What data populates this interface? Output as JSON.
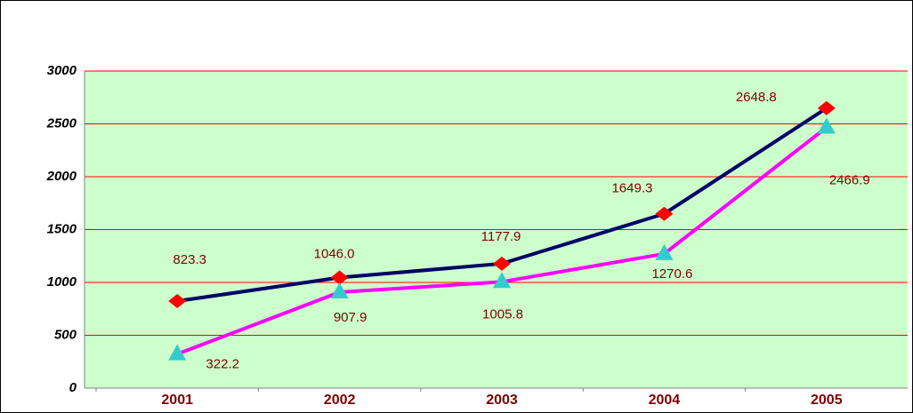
{
  "chart_data": {
    "type": "line",
    "categories": [
      "2001",
      "2002",
      "2003",
      "2004",
      "2005"
    ],
    "series": [
      {
        "color": "#000066",
        "marker_color": "#ff0000",
        "marker": "diamond",
        "values": [
          823.3,
          1046.0,
          1177.9,
          1649.3,
          2648.8
        ],
        "value_labels": [
          "823.3",
          "1046.0",
          "1177.9",
          "1649.3",
          "2648.8"
        ]
      },
      {
        "color": "#ff00ff",
        "marker_color": "#33cccc",
        "marker": "triangle",
        "values": [
          322.2,
          907.9,
          1005.8,
          1270.6,
          2466.9
        ],
        "value_labels": [
          "322.2",
          "907.9",
          "1005.8",
          "1270.6",
          "2466.9"
        ]
      }
    ],
    "ylim": [
      0,
      3000
    ],
    "yticks": [
      0,
      500,
      1000,
      1500,
      2000,
      2500,
      3000
    ],
    "grid": true,
    "grid_color": "#ff0000",
    "plot_background": "#ccffcc"
  }
}
